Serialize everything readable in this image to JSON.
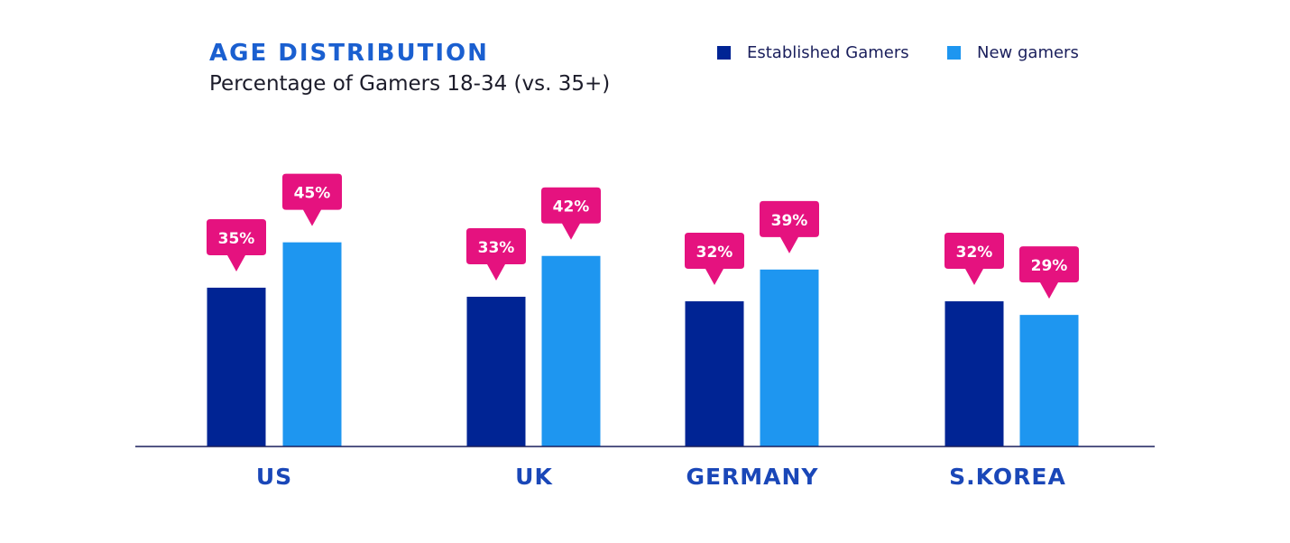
{
  "chart_data": {
    "type": "bar",
    "title": "AGE DISTRIBUTION",
    "subtitle": "Percentage of Gamers 18-34 (vs. 35+)",
    "categories": [
      "US",
      "UK",
      "GERMANY",
      "S.KOREA"
    ],
    "series": [
      {
        "name": "Established Gamers",
        "values": [
          35,
          33,
          32,
          32
        ],
        "color": "#002494"
      },
      {
        "name": "New gamers",
        "values": [
          45,
          42,
          39,
          29
        ],
        "color": "#1e96f0"
      }
    ],
    "value_labels": [
      [
        "35%",
        "33%",
        "32%",
        "32%"
      ],
      [
        "45%",
        "42%",
        "39%",
        "29%"
      ]
    ],
    "label_color": "#e5127f",
    "ylim": [
      0,
      50
    ],
    "grid": false,
    "legend_position": "top-right"
  }
}
